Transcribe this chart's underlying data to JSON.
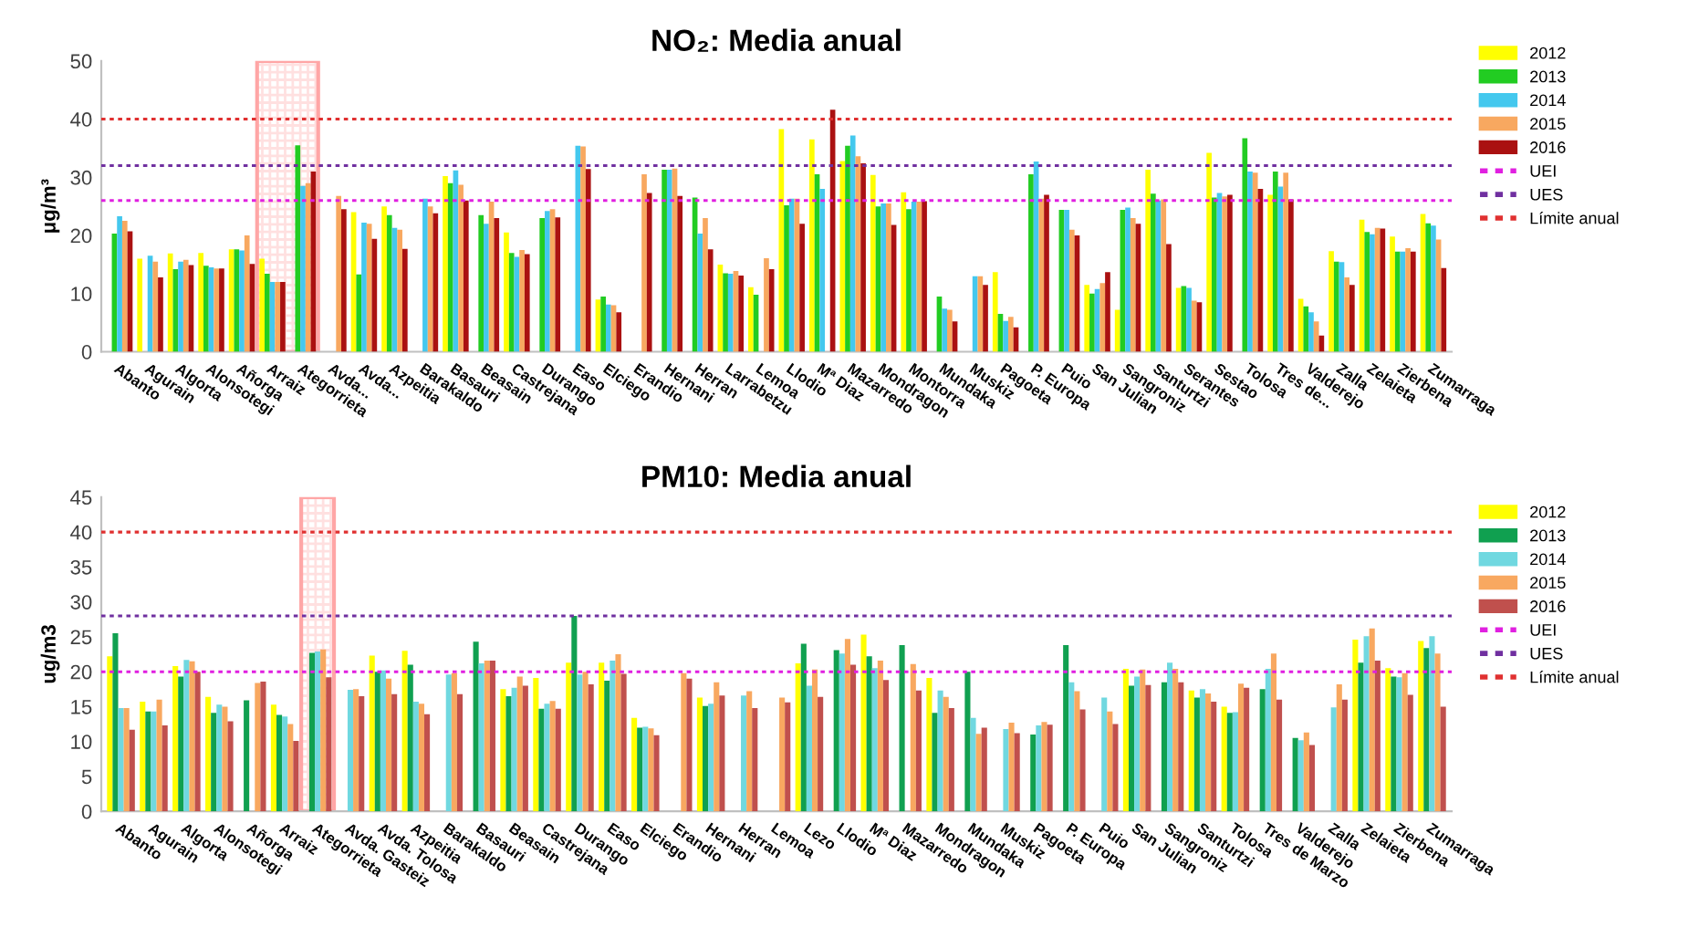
{
  "chart_data": [
    {
      "type": "bar",
      "title": "NO₂: Media anual",
      "ylabel": "μg/m³",
      "ylim": [
        0,
        50
      ],
      "yticks": [
        0,
        10,
        20,
        30,
        40,
        50
      ],
      "grid": false,
      "legend": "right",
      "line_style": "dotted",
      "categories": [
        "Abanto",
        "Agurain",
        "Algorta",
        "Alonsotegi",
        "Añorga",
        "Arraiz",
        "Ategorrieta",
        "Avda...",
        "Avda...",
        "Azpeitia",
        "Barakaldo",
        "Basauri",
        "Beasain",
        "Castrejana",
        "Durango",
        "Easo",
        "Elciego",
        "Erandio",
        "Hernani",
        "Herran",
        "Larrabetzu",
        "Lemoa",
        "Llodio",
        "Mª Diaz",
        "Mazarredo",
        "Mondragon",
        "Montorra",
        "Mundaka",
        "Muskiz",
        "Pagoeta",
        "P. Europa",
        "Puio",
        "San Julian",
        "Sangroniz",
        "Santurtzi",
        "Serantes",
        "Sestao",
        "Tolosa",
        "Tres de...",
        "Valderejo",
        "Zalla",
        "Zelaieta",
        "Zierbena",
        "Zumarraga"
      ],
      "series": [
        {
          "name": "2012",
          "color": "#ffff00",
          "values": [
            null,
            16,
            16.9,
            17,
            17.6,
            16,
            null,
            null,
            24,
            25,
            null,
            30.2,
            null,
            20.5,
            null,
            null,
            9,
            null,
            null,
            null,
            15,
            11.1,
            38.3,
            36.5,
            32.8,
            30.4,
            27.4,
            null,
            null,
            13.7,
            null,
            null,
            11.5,
            7.2,
            31.3,
            11,
            34.2,
            null,
            27,
            9.1,
            17.3,
            22.7,
            19.8,
            23.7
          ]
        },
        {
          "name": "2013",
          "color": "#22cc22",
          "values": [
            20.3,
            null,
            14.2,
            14.8,
            17.6,
            13.4,
            35.5,
            null,
            13.3,
            23.5,
            null,
            29,
            23.5,
            17,
            23,
            null,
            9.5,
            null,
            31.3,
            26.5,
            13.5,
            9.8,
            25.2,
            30.5,
            35.4,
            25,
            24.5,
            9.5,
            null,
            6.5,
            30.5,
            24.4,
            10,
            24.4,
            27.2,
            11.3,
            26.5,
            36.7,
            31,
            7.8,
            15.5,
            20.6,
            17.2,
            22.1
          ]
        },
        {
          "name": "2014",
          "color": "#44c8ee",
          "values": [
            23.3,
            16.5,
            15.5,
            14.5,
            17.4,
            12,
            28.5,
            null,
            22.2,
            21.3,
            26.3,
            31.2,
            22,
            16.3,
            24.2,
            35.4,
            8.1,
            null,
            31.3,
            20.3,
            13.4,
            null,
            26.3,
            28,
            37.2,
            25.5,
            25.8,
            7.4,
            13,
            5.3,
            32.7,
            24.4,
            10.8,
            24.8,
            26,
            11,
            27.3,
            31,
            28.4,
            6.8,
            15.4,
            20.2,
            17.2,
            21.7
          ]
        },
        {
          "name": "2015",
          "color": "#f8a860",
          "values": [
            22.5,
            15.5,
            15.8,
            14.3,
            20,
            12,
            29,
            26.8,
            22,
            21,
            25,
            28.7,
            25.8,
            17.5,
            24.5,
            35.3,
            8,
            30.5,
            31.5,
            23,
            13.9,
            16.1,
            26.3,
            null,
            33.6,
            25.5,
            25.8,
            7.2,
            13,
            6,
            26.3,
            21,
            11.8,
            23,
            26.2,
            8.8,
            26.7,
            30.8,
            30.8,
            5.2,
            12.8,
            21.3,
            17.8,
            19.3
          ]
        },
        {
          "name": "2016",
          "color": "#aa1111",
          "values": [
            20.7,
            12.8,
            14.9,
            14.3,
            15.1,
            12,
            31,
            24.5,
            19.4,
            17.7,
            23.8,
            26,
            23,
            16.8,
            23.1,
            31.4,
            6.8,
            27.3,
            26.8,
            17.6,
            13.1,
            14.2,
            22,
            41.6,
            32.4,
            21.8,
            25.9,
            5.2,
            11.5,
            4.2,
            27,
            20,
            13.7,
            22,
            18.5,
            8.5,
            27,
            28,
            26.2,
            2.8,
            11.5,
            21.2,
            17.2,
            14.4
          ]
        }
      ],
      "ref_lines": [
        {
          "axis": "y",
          "value": 26,
          "label": "UEI",
          "color": "#e020e0"
        },
        {
          "axis": "y",
          "value": 32,
          "label": "UES",
          "color": "#7030a0"
        },
        {
          "axis": "y",
          "value": 40,
          "label": "Límite anual",
          "color": "#e03030"
        }
      ],
      "bands": [
        {
          "axis": "x",
          "from": "Arraiz",
          "to": "Ategorrieta",
          "color": "#ff0000"
        }
      ]
    },
    {
      "type": "bar",
      "title": "PM10: Media anual",
      "ylabel": "ug/m3",
      "ylim": [
        0,
        45
      ],
      "yticks": [
        0,
        5,
        10,
        15,
        20,
        25,
        30,
        35,
        40,
        45
      ],
      "grid": false,
      "legend": "right",
      "line_style": "dotted",
      "categories": [
        "Abanto",
        "Agurain",
        "Algorta",
        "Alonsotegi",
        "Añorga",
        "Arraiz",
        "Ategorrieta",
        "Avda. Gasteiz",
        "Avda. Tolosa",
        "Azpeitia",
        "Barakaldo",
        "Basauri",
        "Beasain",
        "Castrejana",
        "Durango",
        "Easo",
        "Elciego",
        "Erandio",
        "Hernani",
        "Herran",
        "Lemoa",
        "Lezo",
        "Llodio",
        "Mª Diaz",
        "Mazarredo",
        "Mondragon",
        "Mundaka",
        "Muskiz",
        "Pagoeta",
        "P. Europa",
        "Puio",
        "San Julian",
        "Sangroniz",
        "Santurtzi",
        "Tolosa",
        "Tres de Marzo",
        "Valderejo",
        "Zalla",
        "Zelaieta",
        "Zierbena",
        "Zumarraga"
      ],
      "series": [
        {
          "name": "2012",
          "color": "#ffff00",
          "values": [
            22.2,
            15.7,
            20.8,
            16.4,
            null,
            15.3,
            null,
            null,
            22.3,
            23,
            null,
            null,
            17.5,
            19.1,
            21.3,
            21.3,
            13.4,
            null,
            16.3,
            null,
            null,
            21.2,
            null,
            25.3,
            null,
            19.1,
            null,
            null,
            null,
            null,
            null,
            20.4,
            null,
            17.3,
            15,
            null,
            null,
            null,
            24.6,
            20.5,
            24.4
          ]
        },
        {
          "name": "2013",
          "color": "#10a050",
          "values": [
            25.5,
            14.3,
            19.3,
            14.1,
            15.9,
            13.8,
            22.7,
            null,
            20,
            21,
            null,
            24.3,
            16.5,
            14.7,
            28,
            18.7,
            12,
            null,
            15.1,
            null,
            null,
            24,
            23.1,
            22.2,
            23.8,
            14.1,
            20,
            null,
            11,
            23.8,
            null,
            18,
            18.5,
            16.3,
            14.1,
            17.5,
            10.5,
            null,
            21.3,
            19.3,
            23.4
          ]
        },
        {
          "name": "2014",
          "color": "#70d8e0",
          "values": [
            14.8,
            14.3,
            21.7,
            15.3,
            null,
            13.6,
            22.9,
            17.4,
            20.2,
            15.7,
            19.6,
            21.2,
            17.7,
            15.4,
            19.6,
            21.6,
            12.1,
            null,
            15.4,
            16.6,
            null,
            18,
            22.6,
            20.5,
            null,
            17.3,
            13.4,
            11.8,
            12.3,
            18.5,
            16.3,
            19.3,
            21.3,
            17.5,
            14.2,
            20.4,
            10.2,
            14.9,
            25.1,
            19.2,
            25.1
          ]
        },
        {
          "name": "2015",
          "color": "#f8a860",
          "values": [
            14.8,
            16,
            21.5,
            15,
            18.4,
            12.5,
            23.2,
            17.5,
            19,
            15.4,
            19.8,
            21.6,
            19.3,
            15.8,
            20,
            22.5,
            11.9,
            19.8,
            18.5,
            17.2,
            16.3,
            20.3,
            24.7,
            21.6,
            21.1,
            16.4,
            11.1,
            12.7,
            12.8,
            17.2,
            14.3,
            20.3,
            20.4,
            16.9,
            18.3,
            22.6,
            11.3,
            18.2,
            26.2,
            19.8,
            22.6
          ]
        },
        {
          "name": "2016",
          "color": "#c0504d",
          "values": [
            11.7,
            12.3,
            20,
            12.9,
            18.6,
            10.1,
            19.2,
            16.5,
            16.8,
            13.9,
            16.8,
            21.6,
            18,
            14.7,
            18.2,
            19.7,
            10.9,
            19,
            16.6,
            14.8,
            15.6,
            16.4,
            21,
            18.8,
            17.3,
            14.8,
            12,
            11.2,
            12.4,
            14.6,
            12.5,
            18.1,
            18.5,
            15.7,
            17.7,
            16,
            9.5,
            16,
            21.6,
            16.7,
            15
          ]
        }
      ],
      "ref_lines": [
        {
          "axis": "y",
          "value": 20,
          "label": "UEI",
          "color": "#e020e0"
        },
        {
          "axis": "y",
          "value": 28,
          "label": "UES",
          "color": "#7030a0"
        },
        {
          "axis": "y",
          "value": 40,
          "label": "Límite anual",
          "color": "#e03030"
        }
      ],
      "bands": [
        {
          "axis": "x",
          "from": "Ategorrieta",
          "to": "Ategorrieta",
          "color": "#ff0000"
        }
      ]
    }
  ]
}
